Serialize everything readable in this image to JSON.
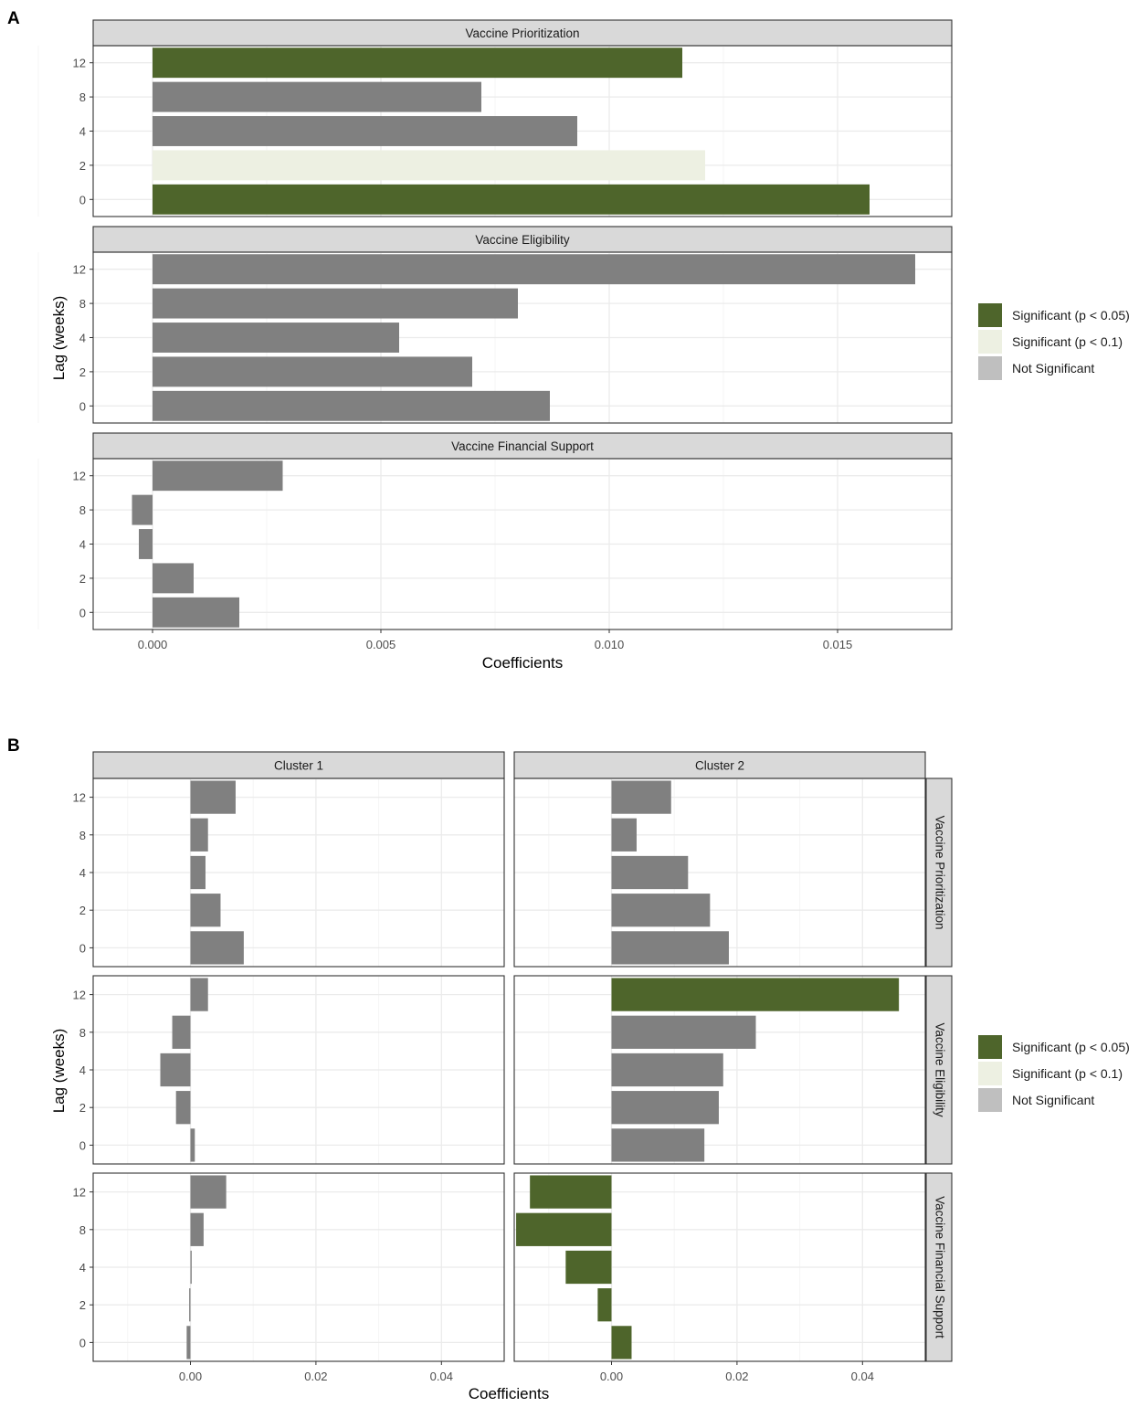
{
  "chart_data": [
    {
      "panel_label": "A",
      "type": "bar",
      "orientation": "horizontal",
      "xlabel": "Coefficients",
      "ylabel": "Lag (weeks)",
      "xlim": [
        -0.0013,
        0.0175
      ],
      "x_ticks": [
        0.0,
        0.005,
        0.01,
        0.015
      ],
      "x_tick_labels": [
        "0.000",
        "0.005",
        "0.010",
        "0.015"
      ],
      "lag_labels": [
        "12",
        "8",
        "4",
        "2",
        "0"
      ],
      "legend": {
        "position": "right",
        "items": [
          {
            "key": "sig05",
            "label": "Significant (p < 0.05)",
            "color": "#4e652b"
          },
          {
            "key": "sig10",
            "label": "Significant (p < 0.1)",
            "color": "#edf0e2"
          },
          {
            "key": "ns",
            "label": "Not Significant",
            "color": "#bfbfbf"
          }
        ]
      },
      "facets": [
        {
          "title": "Vaccine Prioritization",
          "bars": [
            {
              "lag": "12",
              "value": 0.0116,
              "sig": "sig05"
            },
            {
              "lag": "8",
              "value": 0.0072,
              "sig": "ns"
            },
            {
              "lag": "4",
              "value": 0.0093,
              "sig": "ns"
            },
            {
              "lag": "2",
              "value": 0.0121,
              "sig": "sig10"
            },
            {
              "lag": "0",
              "value": 0.0157,
              "sig": "sig05"
            }
          ]
        },
        {
          "title": "Vaccine Eligibility",
          "bars": [
            {
              "lag": "12",
              "value": 0.0167,
              "sig": "ns"
            },
            {
              "lag": "8",
              "value": 0.008,
              "sig": "ns"
            },
            {
              "lag": "4",
              "value": 0.0054,
              "sig": "ns"
            },
            {
              "lag": "2",
              "value": 0.007,
              "sig": "ns"
            },
            {
              "lag": "0",
              "value": 0.0087,
              "sig": "ns"
            }
          ]
        },
        {
          "title": "Vaccine Financial Support",
          "bars": [
            {
              "lag": "12",
              "value": 0.00285,
              "sig": "ns"
            },
            {
              "lag": "8",
              "value": -0.00045,
              "sig": "ns"
            },
            {
              "lag": "4",
              "value": -0.0003,
              "sig": "ns"
            },
            {
              "lag": "2",
              "value": 0.0009,
              "sig": "ns"
            },
            {
              "lag": "0",
              "value": 0.0019,
              "sig": "ns"
            }
          ]
        }
      ]
    },
    {
      "panel_label": "B",
      "type": "bar",
      "orientation": "horizontal",
      "xlabel": "Coefficients",
      "ylabel": "Lag (weeks)",
      "xlim": [
        -0.0155,
        0.05
      ],
      "x_ticks": [
        0.0,
        0.02,
        0.04
      ],
      "x_tick_labels": [
        "0.00",
        "0.02",
        "0.04"
      ],
      "lag_labels": [
        "12",
        "8",
        "4",
        "2",
        "0"
      ],
      "columns": [
        "Cluster 1",
        "Cluster 2"
      ],
      "rows": [
        "Vaccine Prioritization",
        "Vaccine Eligibility",
        "Vaccine Financial Support"
      ],
      "legend": {
        "position": "right",
        "items": [
          {
            "key": "sig05",
            "label": "Significant (p < 0.05)",
            "color": "#4e652b"
          },
          {
            "key": "sig10",
            "label": "Significant (p < 0.1)",
            "color": "#edf0e2"
          },
          {
            "key": "ns",
            "label": "Not Significant",
            "color": "#bfbfbf"
          }
        ]
      },
      "cells": [
        [
          {
            "bars": [
              {
                "lag": "12",
                "value": 0.0072,
                "sig": "ns"
              },
              {
                "lag": "8",
                "value": 0.0028,
                "sig": "ns"
              },
              {
                "lag": "4",
                "value": 0.0024,
                "sig": "ns"
              },
              {
                "lag": "2",
                "value": 0.0048,
                "sig": "ns"
              },
              {
                "lag": "0",
                "value": 0.0085,
                "sig": "ns"
              }
            ]
          },
          {
            "bars": [
              {
                "lag": "12",
                "value": 0.0095,
                "sig": "ns"
              },
              {
                "lag": "8",
                "value": 0.004,
                "sig": "ns"
              },
              {
                "lag": "4",
                "value": 0.0122,
                "sig": "ns"
              },
              {
                "lag": "2",
                "value": 0.0157,
                "sig": "ns"
              },
              {
                "lag": "0",
                "value": 0.0187,
                "sig": "ns"
              }
            ]
          }
        ],
        [
          {
            "bars": [
              {
                "lag": "12",
                "value": 0.0028,
                "sig": "ns"
              },
              {
                "lag": "8",
                "value": -0.0029,
                "sig": "ns"
              },
              {
                "lag": "4",
                "value": -0.0048,
                "sig": "ns"
              },
              {
                "lag": "2",
                "value": -0.0023,
                "sig": "ns"
              },
              {
                "lag": "0",
                "value": 0.0007,
                "sig": "ns"
              }
            ]
          },
          {
            "bars": [
              {
                "lag": "12",
                "value": 0.0458,
                "sig": "sig05"
              },
              {
                "lag": "8",
                "value": 0.023,
                "sig": "ns"
              },
              {
                "lag": "4",
                "value": 0.0178,
                "sig": "ns"
              },
              {
                "lag": "2",
                "value": 0.0171,
                "sig": "ns"
              },
              {
                "lag": "0",
                "value": 0.0148,
                "sig": "ns"
              }
            ]
          }
        ],
        [
          {
            "bars": [
              {
                "lag": "12",
                "value": 0.0057,
                "sig": "ns"
              },
              {
                "lag": "8",
                "value": 0.0021,
                "sig": "ns"
              },
              {
                "lag": "4",
                "value": 0.0002,
                "sig": "ns"
              },
              {
                "lag": "2",
                "value": -0.0002,
                "sig": "ns"
              },
              {
                "lag": "0",
                "value": -0.0006,
                "sig": "ns"
              }
            ]
          },
          {
            "bars": [
              {
                "lag": "12",
                "value": -0.013,
                "sig": "sig05"
              },
              {
                "lag": "8",
                "value": -0.0152,
                "sig": "sig05"
              },
              {
                "lag": "4",
                "value": -0.0073,
                "sig": "sig05"
              },
              {
                "lag": "2",
                "value": -0.0022,
                "sig": "sig05"
              },
              {
                "lag": "0",
                "value": 0.0032,
                "sig": "sig05"
              }
            ]
          }
        ]
      ]
    }
  ],
  "colors": {
    "ns_bar": "#808080",
    "strip_fill": "#d9d9d9",
    "grid_major": "#ebebeb",
    "grid_minor": "#f5f5f5",
    "axis_text": "#4d4d4d"
  }
}
